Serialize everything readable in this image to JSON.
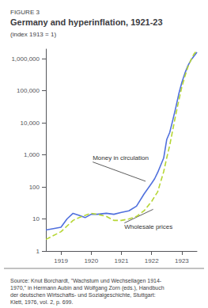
{
  "chart_data": {
    "type": "line",
    "figure_label": "FIGURE 3",
    "title": "Germany and hyperinflation, 1921-23",
    "subtitle": "(index 1913 = 1)",
    "source": "Source: Knut Borchardt, \"Wachstum und Wechsellagen 1914-\n1970,\" in Hermann Aubin and Wolfgang Zorn (eds.), Handbuch\nder deutschen Wirtschafts- und Sozialgeschichte, Stuttgart:\nKlett, 1976, vol. 2, p. 699.",
    "log": "y",
    "grid": false,
    "xlim": [
      1918.5,
      1923.5
    ],
    "xticks": [
      1919,
      1920,
      1921,
      1922,
      1923
    ],
    "ylim": [
      1,
      2000000
    ],
    "yticks": [
      1,
      10,
      100,
      {
        "value": 1000,
        "label": "1,000"
      },
      {
        "value": 10000,
        "label": "10,000"
      },
      {
        "value": 100000,
        "label": "100,000"
      },
      {
        "value": 1000000,
        "label": "1,000,000"
      }
    ],
    "x": [
      1918.5,
      1919.0,
      1919.2,
      1919.4,
      1919.6,
      1919.8,
      1920.0,
      1920.2,
      1920.5,
      1920.75,
      1921.0,
      1921.25,
      1921.5,
      1921.75,
      1922.0,
      1922.1,
      1922.2,
      1922.4,
      1922.5,
      1922.6,
      1922.7,
      1922.8,
      1922.9,
      1923.0,
      1923.1,
      1923.2,
      1923.3,
      1923.4,
      1923.5
    ],
    "series": [
      {
        "name": "Money in circulation",
        "line_style": "solid",
        "values": [
          4.5,
          5.5,
          10,
          15,
          13,
          11,
          14,
          14,
          15,
          14,
          16,
          18,
          25,
          60,
          130,
          180,
          280,
          800,
          3000,
          5000,
          12000,
          30000,
          80000,
          180000,
          350000,
          600000,
          900000,
          1200000,
          1600000
        ]
      },
      {
        "name": "Wholesale prices",
        "line_style": "dashed",
        "values": [
          2.3,
          4.0,
          6,
          9,
          11,
          13,
          15,
          14,
          12,
          9,
          9,
          10,
          12,
          18,
          35,
          50,
          70,
          300,
          800,
          2000,
          6000,
          18000,
          50000,
          130000,
          280000,
          550000,
          900000,
          1400000,
          1800000
        ]
      }
    ],
    "annotations": [
      {
        "text": "Money in circulation",
        "x": 1921.8,
        "y": 150,
        "text_x": 1920.05,
        "text_y": 600
      },
      {
        "text": "Wholesale prices",
        "x": 1922.05,
        "y": 20,
        "text_x": 1921.1,
        "text_y": 7.5
      }
    ]
  }
}
